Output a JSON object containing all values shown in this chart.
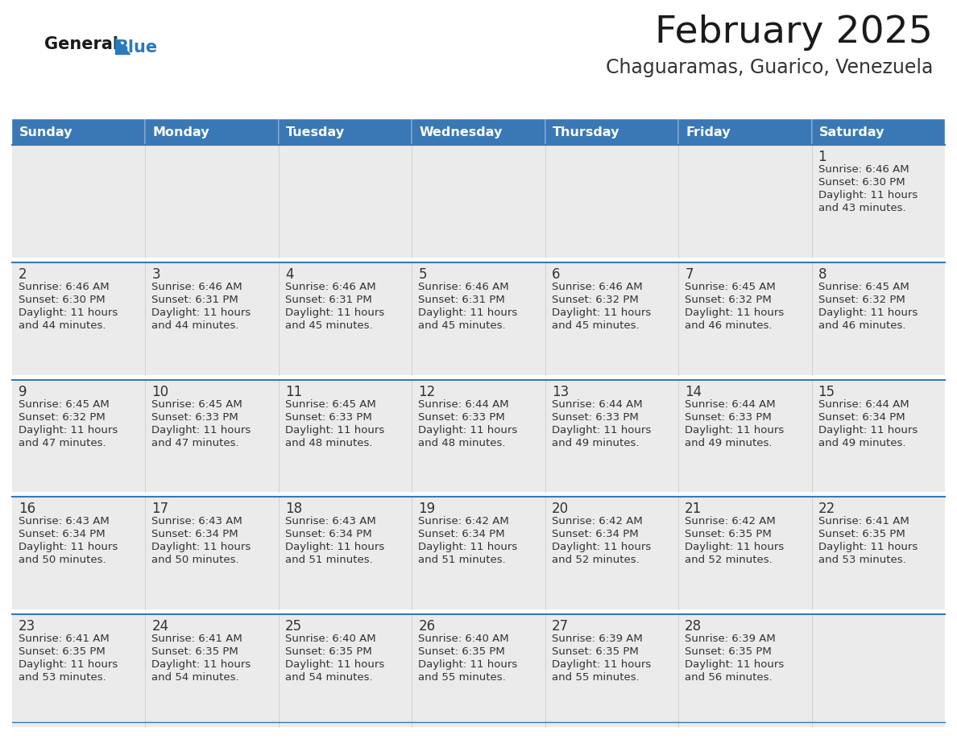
{
  "title": "February 2025",
  "subtitle": "Chaguaramas, Guarico, Venezuela",
  "header_bg": "#3a78b5",
  "header_text": "#ffffff",
  "day_names": [
    "Sunday",
    "Monday",
    "Tuesday",
    "Wednesday",
    "Thursday",
    "Friday",
    "Saturday"
  ],
  "row_bg": "#ebebeb",
  "row_separator_color": "#3a78b5",
  "cell_border_color": "#cccccc",
  "day_num_color": "#333333",
  "info_color": "#333333",
  "title_color": "#1a1a1a",
  "subtitle_color": "#333333",
  "logo_general_color": "#1a1a1a",
  "logo_blue_color": "#2a7abf",
  "calendar_data": [
    [
      null,
      null,
      null,
      null,
      null,
      null,
      {
        "day": 1,
        "sunrise": "6:46 AM",
        "sunset": "6:30 PM",
        "daylight": "11 hours",
        "daylight2": "and 43 minutes."
      }
    ],
    [
      {
        "day": 2,
        "sunrise": "6:46 AM",
        "sunset": "6:30 PM",
        "daylight": "11 hours",
        "daylight2": "and 44 minutes."
      },
      {
        "day": 3,
        "sunrise": "6:46 AM",
        "sunset": "6:31 PM",
        "daylight": "11 hours",
        "daylight2": "and 44 minutes."
      },
      {
        "day": 4,
        "sunrise": "6:46 AM",
        "sunset": "6:31 PM",
        "daylight": "11 hours",
        "daylight2": "and 45 minutes."
      },
      {
        "day": 5,
        "sunrise": "6:46 AM",
        "sunset": "6:31 PM",
        "daylight": "11 hours",
        "daylight2": "and 45 minutes."
      },
      {
        "day": 6,
        "sunrise": "6:46 AM",
        "sunset": "6:32 PM",
        "daylight": "11 hours",
        "daylight2": "and 45 minutes."
      },
      {
        "day": 7,
        "sunrise": "6:45 AM",
        "sunset": "6:32 PM",
        "daylight": "11 hours",
        "daylight2": "and 46 minutes."
      },
      {
        "day": 8,
        "sunrise": "6:45 AM",
        "sunset": "6:32 PM",
        "daylight": "11 hours",
        "daylight2": "and 46 minutes."
      }
    ],
    [
      {
        "day": 9,
        "sunrise": "6:45 AM",
        "sunset": "6:32 PM",
        "daylight": "11 hours",
        "daylight2": "and 47 minutes."
      },
      {
        "day": 10,
        "sunrise": "6:45 AM",
        "sunset": "6:33 PM",
        "daylight": "11 hours",
        "daylight2": "and 47 minutes."
      },
      {
        "day": 11,
        "sunrise": "6:45 AM",
        "sunset": "6:33 PM",
        "daylight": "11 hours",
        "daylight2": "and 48 minutes."
      },
      {
        "day": 12,
        "sunrise": "6:44 AM",
        "sunset": "6:33 PM",
        "daylight": "11 hours",
        "daylight2": "and 48 minutes."
      },
      {
        "day": 13,
        "sunrise": "6:44 AM",
        "sunset": "6:33 PM",
        "daylight": "11 hours",
        "daylight2": "and 49 minutes."
      },
      {
        "day": 14,
        "sunrise": "6:44 AM",
        "sunset": "6:33 PM",
        "daylight": "11 hours",
        "daylight2": "and 49 minutes."
      },
      {
        "day": 15,
        "sunrise": "6:44 AM",
        "sunset": "6:34 PM",
        "daylight": "11 hours",
        "daylight2": "and 49 minutes."
      }
    ],
    [
      {
        "day": 16,
        "sunrise": "6:43 AM",
        "sunset": "6:34 PM",
        "daylight": "11 hours",
        "daylight2": "and 50 minutes."
      },
      {
        "day": 17,
        "sunrise": "6:43 AM",
        "sunset": "6:34 PM",
        "daylight": "11 hours",
        "daylight2": "and 50 minutes."
      },
      {
        "day": 18,
        "sunrise": "6:43 AM",
        "sunset": "6:34 PM",
        "daylight": "11 hours",
        "daylight2": "and 51 minutes."
      },
      {
        "day": 19,
        "sunrise": "6:42 AM",
        "sunset": "6:34 PM",
        "daylight": "11 hours",
        "daylight2": "and 51 minutes."
      },
      {
        "day": 20,
        "sunrise": "6:42 AM",
        "sunset": "6:34 PM",
        "daylight": "11 hours",
        "daylight2": "and 52 minutes."
      },
      {
        "day": 21,
        "sunrise": "6:42 AM",
        "sunset": "6:35 PM",
        "daylight": "11 hours",
        "daylight2": "and 52 minutes."
      },
      {
        "day": 22,
        "sunrise": "6:41 AM",
        "sunset": "6:35 PM",
        "daylight": "11 hours",
        "daylight2": "and 53 minutes."
      }
    ],
    [
      {
        "day": 23,
        "sunrise": "6:41 AM",
        "sunset": "6:35 PM",
        "daylight": "11 hours",
        "daylight2": "and 53 minutes."
      },
      {
        "day": 24,
        "sunrise": "6:41 AM",
        "sunset": "6:35 PM",
        "daylight": "11 hours",
        "daylight2": "and 54 minutes."
      },
      {
        "day": 25,
        "sunrise": "6:40 AM",
        "sunset": "6:35 PM",
        "daylight": "11 hours",
        "daylight2": "and 54 minutes."
      },
      {
        "day": 26,
        "sunrise": "6:40 AM",
        "sunset": "6:35 PM",
        "daylight": "11 hours",
        "daylight2": "and 55 minutes."
      },
      {
        "day": 27,
        "sunrise": "6:39 AM",
        "sunset": "6:35 PM",
        "daylight": "11 hours",
        "daylight2": "and 55 minutes."
      },
      {
        "day": 28,
        "sunrise": "6:39 AM",
        "sunset": "6:35 PM",
        "daylight": "11 hours",
        "daylight2": "and 56 minutes."
      },
      null
    ]
  ],
  "fig_width": 11.88,
  "fig_height": 9.18,
  "dpi": 100
}
